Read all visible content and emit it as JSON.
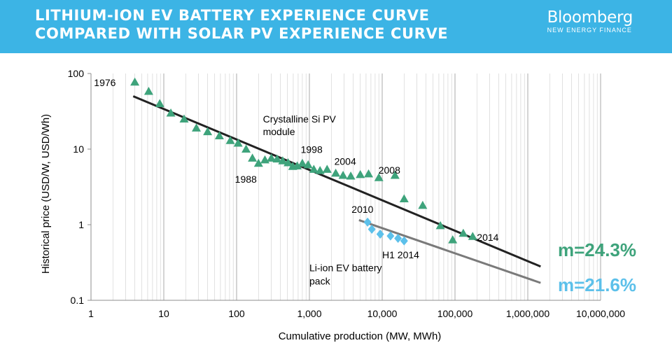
{
  "header": {
    "title_line1": "LITHIUM-ION EV BATTERY EXPERIENCE CURVE",
    "title_line2": "COMPARED WITH SOLAR PV EXPERIENCE CURVE",
    "brand_name": "Bloomberg",
    "brand_sub": "NEW ENERGY FINANCE"
  },
  "colors": {
    "header_bg": "#3cb4e5",
    "pv_marker": "#3ea37b",
    "battery_marker": "#5cc0ea",
    "pv_trend": "#222222",
    "battery_trend": "#7a7a7a",
    "pv_m_label": "#3ea37b",
    "battery_m_label": "#5cc0ea"
  },
  "chart_data": {
    "type": "scatter",
    "x_scale": "log",
    "y_scale": "log",
    "xlim": [
      1,
      10000000
    ],
    "ylim": [
      0.1,
      100
    ],
    "xlabel": "Cumulative production (MW, MWh)",
    "ylabel": "Historical price (USD/W, USD/Wh)",
    "x_ticks": [
      {
        "value": 1,
        "label": "1"
      },
      {
        "value": 10,
        "label": "10"
      },
      {
        "value": 100,
        "label": "100"
      },
      {
        "value": 1000,
        "label": "1,000"
      },
      {
        "value": 10000,
        "label": "10,000"
      },
      {
        "value": 100000,
        "label": "100,000"
      },
      {
        "value": 1000000,
        "label": "1,000,000"
      },
      {
        "value": 10000000,
        "label": "10,000,000"
      }
    ],
    "y_ticks": [
      {
        "value": 0.1,
        "label": "0.1"
      },
      {
        "value": 1,
        "label": "1"
      },
      {
        "value": 10,
        "label": "10"
      },
      {
        "value": 100,
        "label": "100"
      }
    ],
    "grid": {
      "vertical": true,
      "horizontal": false,
      "minor_vertical": true
    },
    "series": [
      {
        "marker": "triangle",
        "color": "#3ea37b",
        "points": [
          {
            "x": 4,
            "y": 77
          },
          {
            "x": 6.2,
            "y": 58
          },
          {
            "x": 8.8,
            "y": 40
          },
          {
            "x": 12.5,
            "y": 30
          },
          {
            "x": 19,
            "y": 25
          },
          {
            "x": 28,
            "y": 19
          },
          {
            "x": 40,
            "y": 17
          },
          {
            "x": 58,
            "y": 15
          },
          {
            "x": 82,
            "y": 13
          },
          {
            "x": 105,
            "y": 12
          },
          {
            "x": 135,
            "y": 10
          },
          {
            "x": 165,
            "y": 7.6
          },
          {
            "x": 200,
            "y": 6.5
          },
          {
            "x": 245,
            "y": 7.2
          },
          {
            "x": 300,
            "y": 7.6
          },
          {
            "x": 360,
            "y": 7.4
          },
          {
            "x": 430,
            "y": 7.0
          },
          {
            "x": 510,
            "y": 6.6
          },
          {
            "x": 590,
            "y": 5.9
          },
          {
            "x": 680,
            "y": 6.0
          },
          {
            "x": 800,
            "y": 6.5
          },
          {
            "x": 960,
            "y": 6.2
          },
          {
            "x": 1150,
            "y": 5.4
          },
          {
            "x": 1400,
            "y": 5.2
          },
          {
            "x": 1750,
            "y": 5.4
          },
          {
            "x": 2300,
            "y": 4.8
          },
          {
            "x": 2900,
            "y": 4.5
          },
          {
            "x": 3700,
            "y": 4.4
          },
          {
            "x": 5000,
            "y": 4.6
          },
          {
            "x": 6500,
            "y": 4.7
          },
          {
            "x": 9000,
            "y": 4.2
          },
          {
            "x": 15000,
            "y": 4.5
          },
          {
            "x": 20000,
            "y": 2.2
          },
          {
            "x": 36000,
            "y": 1.8
          },
          {
            "x": 63000,
            "y": 0.97
          },
          {
            "x": 93000,
            "y": 0.63
          },
          {
            "x": 130000,
            "y": 0.77
          },
          {
            "x": 175000,
            "y": 0.7
          }
        ],
        "trend": {
          "x": [
            3.8,
            1500000
          ],
          "y": [
            50,
            0.28
          ]
        }
      },
      {
        "marker": "diamond",
        "color": "#5cc0ea",
        "points": [
          {
            "x": 6300,
            "y": 1.08
          },
          {
            "x": 7200,
            "y": 0.87
          },
          {
            "x": 9400,
            "y": 0.75
          },
          {
            "x": 13000,
            "y": 0.71
          },
          {
            "x": 16500,
            "y": 0.66
          },
          {
            "x": 20000,
            "y": 0.61
          }
        ],
        "trend": {
          "x": [
            4800,
            1500000
          ],
          "y": [
            1.15,
            0.17
          ]
        }
      }
    ],
    "annotations": [
      {
        "text": "1976",
        "x": 1.1,
        "y": 76
      },
      {
        "text": "Crystalline Si PV",
        "x": 230,
        "y": 25
      },
      {
        "text": "module",
        "x": 230,
        "y": 17
      },
      {
        "text": "1998",
        "x": 760,
        "y": 9.9
      },
      {
        "text": "1988",
        "x": 95,
        "y": 4.0
      },
      {
        "text": "2004",
        "x": 2200,
        "y": 6.9
      },
      {
        "text": "2008",
        "x": 8900,
        "y": 5.3
      },
      {
        "text": "2010",
        "x": 3800,
        "y": 1.6
      },
      {
        "text": "2014",
        "x": 200000,
        "y": 0.68
      },
      {
        "text": "H1 2014",
        "x": 10000,
        "y": 0.4
      },
      {
        "text": "Li-ion EV battery",
        "x": 1000,
        "y": 0.27
      },
      {
        "text": "pack",
        "x": 1000,
        "y": 0.18
      }
    ],
    "m_labels": {
      "pv": {
        "text": "m=24.3%",
        "color": "#3ea37b"
      },
      "battery": {
        "text": "m=21.6%",
        "color": "#5cc0ea"
      }
    }
  }
}
